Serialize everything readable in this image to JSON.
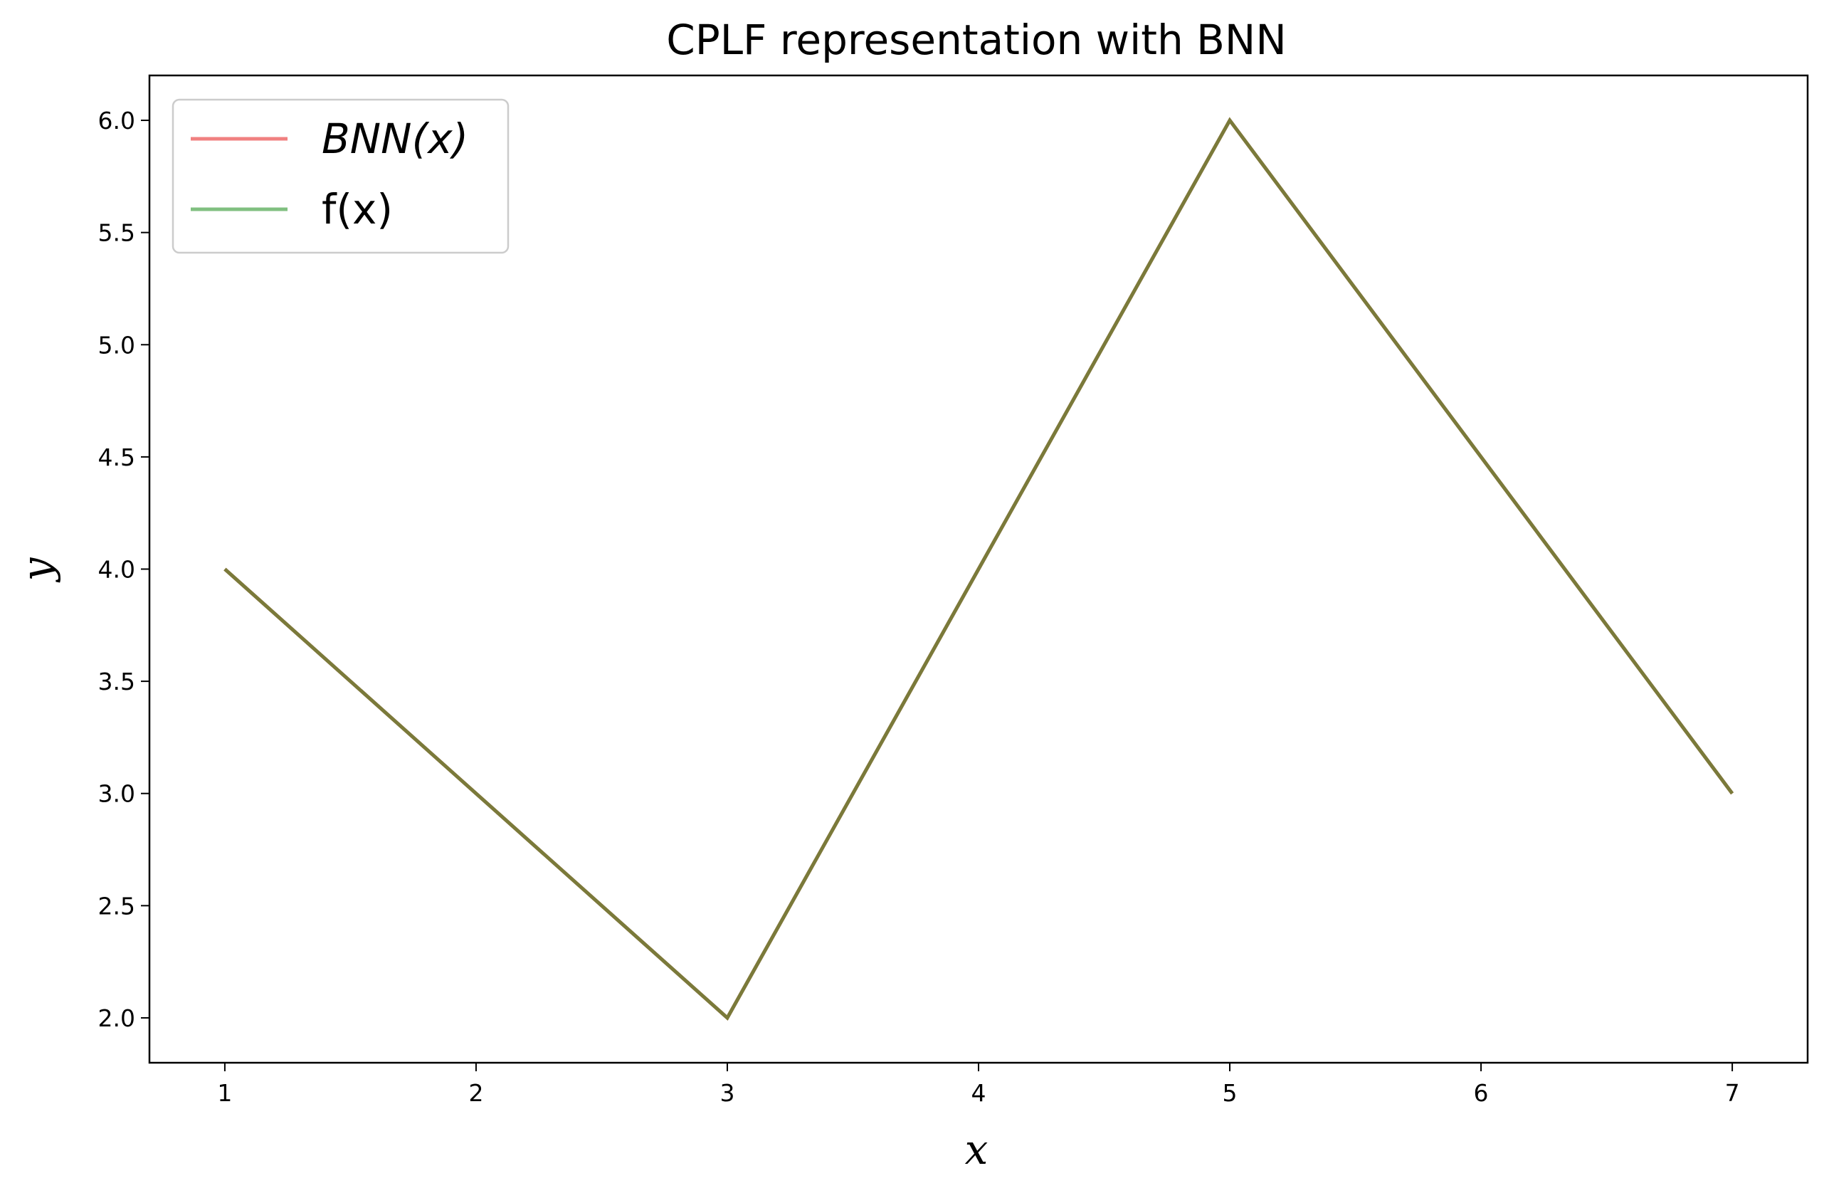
{
  "chart_data": {
    "type": "line",
    "title": "CPLF representation with BNN",
    "xlabel": "x",
    "ylabel": "y",
    "xlim": [
      0.7,
      7.3
    ],
    "ylim": [
      1.8,
      6.2
    ],
    "xticks": [
      1,
      2,
      3,
      4,
      5,
      6,
      7
    ],
    "yticks": [
      2.0,
      2.5,
      3.0,
      3.5,
      4.0,
      4.5,
      5.0,
      5.5,
      6.0
    ],
    "xtick_labels": [
      "1",
      "2",
      "3",
      "4",
      "5",
      "6",
      "7"
    ],
    "ytick_labels": [
      "2.0",
      "2.5",
      "3.0",
      "3.5",
      "4.0",
      "4.5",
      "5.0",
      "5.5",
      "6.0"
    ],
    "legend_position": "upper-left",
    "grid": false,
    "x": [
      1,
      2,
      3,
      4,
      5,
      6,
      7
    ],
    "series": [
      {
        "name": "BNN(x)",
        "label_style": "italic",
        "color": "#f08080",
        "values": [
          4.0,
          3.0,
          2.0,
          4.0,
          6.0,
          4.5,
          3.0
        ]
      },
      {
        "name": "f(x)",
        "label_style": "normal",
        "color": "#80bf80",
        "values": [
          4.0,
          3.0,
          2.0,
          4.0,
          6.0,
          4.5,
          3.0
        ]
      }
    ],
    "overlap_color": "#7a7a3a"
  }
}
